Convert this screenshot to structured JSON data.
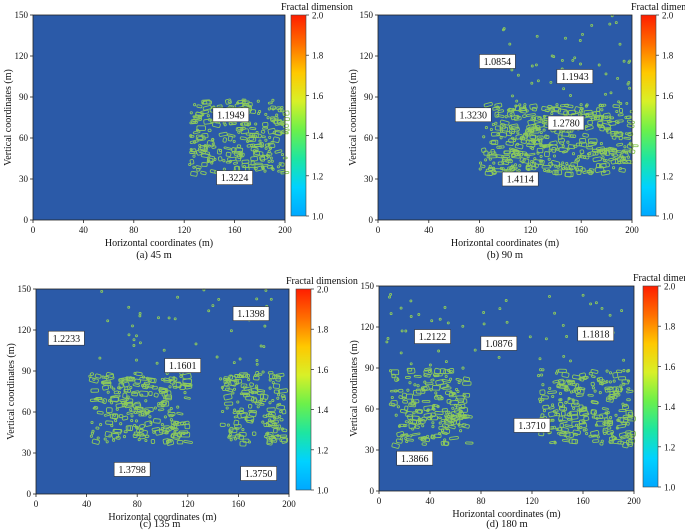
{
  "colors": {
    "plot_background": "#2b5aa8",
    "contour": "#8ecb5a",
    "colormap": [
      "#00a8ff",
      "#00d2ff",
      "#1ee6a0",
      "#6cf04a",
      "#d8f028",
      "#ffc800",
      "#ff6e00",
      "#ff1e00"
    ]
  },
  "chart_data": [
    {
      "type": "heatmap",
      "panel": "a",
      "caption": "(a) 45 m",
      "xlabel": "Horizontal coordinates (m)",
      "ylabel": "Vertical coordinates (m)",
      "xlim": [
        0,
        200
      ],
      "ylim": [
        0,
        150
      ],
      "xticks": [
        0,
        40,
        80,
        120,
        160,
        200
      ],
      "yticks": [
        0,
        30,
        60,
        90,
        120,
        150
      ],
      "colorbar": {
        "label": "Fractal dimension",
        "range": [
          1.0,
          2.0
        ],
        "ticks": [
          "1.0",
          "1.2",
          "1.4",
          "1.6",
          "1.8",
          "2.0"
        ]
      },
      "fracture_zones": [
        {
          "x_range": [
            124,
            200
          ],
          "y_range": [
            35,
            88
          ],
          "density": 0.9
        }
      ],
      "annotations": [
        {
          "text": "1.1949",
          "x": 157,
          "y": 77
        },
        {
          "text": "1.3224",
          "x": 160,
          "y": 31
        }
      ]
    },
    {
      "type": "heatmap",
      "panel": "b",
      "caption": "(b) 90 m",
      "xlabel": "Horizontal coordinates (m)",
      "ylabel": "Vertical coordinates (m)",
      "xlim": [
        0,
        200
      ],
      "ylim": [
        0,
        150
      ],
      "xticks": [
        0,
        40,
        80,
        120,
        160,
        200
      ],
      "yticks": [
        0,
        30,
        60,
        90,
        120,
        150
      ],
      "colorbar": {
        "label": "Fractal dimension",
        "range": [
          1.0,
          2.0
        ],
        "ticks": [
          "1.0",
          "1.2",
          "1.4",
          "1.6",
          "1.8",
          "2.0"
        ]
      },
      "fracture_zones": [
        {
          "x_range": [
            80,
            200
          ],
          "y_range": [
            35,
            85
          ],
          "density": 1.0
        },
        {
          "x_range": [
            95,
            200
          ],
          "y_range": [
            85,
            150
          ],
          "density": 0.08
        }
      ],
      "annotations": [
        {
          "text": "1.0854",
          "x": 94,
          "y": 116
        },
        {
          "text": "1.1943",
          "x": 155,
          "y": 105
        },
        {
          "text": "1.3230",
          "x": 75,
          "y": 77
        },
        {
          "text": "1.2780",
          "x": 148,
          "y": 71
        },
        {
          "text": "1.4114",
          "x": 112,
          "y": 30
        }
      ]
    },
    {
      "type": "heatmap",
      "panel": "c",
      "caption": "(c) 135 m",
      "xlabel": "Horizontal coordinates (m)",
      "ylabel": "Vertical coordinates (m)",
      "xlim": [
        0,
        200
      ],
      "ylim": [
        0,
        150
      ],
      "xticks": [
        0,
        40,
        80,
        120,
        160,
        200
      ],
      "yticks": [
        0,
        30,
        60,
        90,
        120,
        150
      ],
      "colorbar": {
        "label": "Fractal dimension",
        "range": [
          1.0,
          2.0
        ],
        "ticks": [
          "1.0",
          "1.2",
          "1.4",
          "1.6",
          "1.8",
          "2.0"
        ]
      },
      "fracture_zones": [
        {
          "x_range": [
            42,
            118
          ],
          "y_range": [
            38,
            90
          ],
          "density": 0.85
        },
        {
          "x_range": [
            145,
            195
          ],
          "y_range": [
            38,
            90
          ],
          "density": 0.85
        },
        {
          "x_range": [
            40,
            195
          ],
          "y_range": [
            90,
            150
          ],
          "density": 0.05
        }
      ],
      "annotations": [
        {
          "text": "1.2233",
          "x": 24,
          "y": 114
        },
        {
          "text": "1.1398",
          "x": 170,
          "y": 132
        },
        {
          "text": "1.1601",
          "x": 116,
          "y": 94
        },
        {
          "text": "1.3798",
          "x": 76,
          "y": 18
        },
        {
          "text": "1.3750",
          "x": 176,
          "y": 15
        }
      ]
    },
    {
      "type": "heatmap",
      "panel": "d",
      "caption": "(d) 180 m",
      "xlabel": "Horizontal coordinates (m)",
      "ylabel": "Vertical coordinates (m)",
      "xlim": [
        0,
        200
      ],
      "ylim": [
        0,
        150
      ],
      "xticks": [
        0,
        40,
        80,
        120,
        160,
        200
      ],
      "yticks": [
        0,
        30,
        60,
        90,
        120,
        150
      ],
      "colorbar": {
        "label": "Fractal dimension",
        "range": [
          1.0,
          2.0
        ],
        "ticks": [
          "1.0",
          "1.2",
          "1.4",
          "1.6",
          "1.8",
          "2.0"
        ]
      },
      "fracture_zones": [
        {
          "x_range": [
            8,
            68
          ],
          "y_range": [
            35,
            90
          ],
          "density": 0.85
        },
        {
          "x_range": [
            125,
            198
          ],
          "y_range": [
            35,
            90
          ],
          "density": 0.85
        },
        {
          "x_range": [
            5,
            198
          ],
          "y_range": [
            90,
            150
          ],
          "density": 0.05
        }
      ],
      "annotations": [
        {
          "text": "1.2122",
          "x": 42,
          "y": 113
        },
        {
          "text": "1.0876",
          "x": 94,
          "y": 108
        },
        {
          "text": "1.1818",
          "x": 170,
          "y": 115
        },
        {
          "text": "1.3710",
          "x": 120,
          "y": 48
        },
        {
          "text": "1.3866",
          "x": 28,
          "y": 24
        }
      ]
    }
  ]
}
